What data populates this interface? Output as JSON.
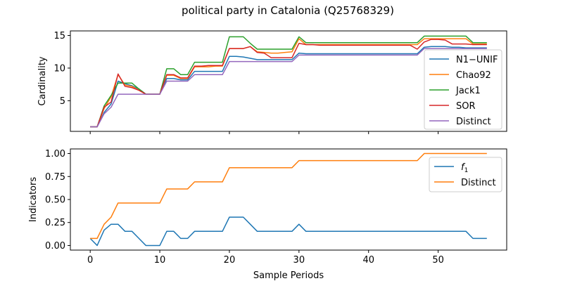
{
  "figure": {
    "title": "political party in Catalonia (Q25768329)"
  },
  "chart_data": [
    {
      "type": "line",
      "title": "political party in Catalonia (Q25768329)",
      "xlabel": "",
      "ylabel": "Cardinality",
      "xlim": [
        -2.85,
        59.85
      ],
      "ylim": [
        0.3,
        15.7
      ],
      "xticks": [
        0,
        10,
        20,
        30,
        40,
        50
      ],
      "xtick_labels": [
        "",
        "",
        "",
        "",
        "",
        ""
      ],
      "yticks": [
        5,
        10,
        15
      ],
      "ytick_labels": [
        "5",
        "10",
        "15"
      ],
      "grid": false,
      "legend_placement": "center-right",
      "x": [
        0,
        1,
        2,
        3,
        4,
        5,
        6,
        7,
        8,
        9,
        10,
        11,
        12,
        13,
        14,
        15,
        16,
        17,
        18,
        19,
        20,
        21,
        22,
        23,
        24,
        25,
        26,
        27,
        28,
        29,
        30,
        31,
        32,
        33,
        34,
        35,
        36,
        37,
        38,
        39,
        40,
        41,
        42,
        43,
        44,
        45,
        46,
        47,
        48,
        49,
        50,
        51,
        52,
        53,
        54,
        55,
        56,
        57
      ],
      "series": [
        {
          "name": "N1−UNIF",
          "color": "#1f77b4",
          "values": [
            1,
            1,
            3.2,
            4.5,
            8,
            7.6,
            7.3,
            6.8,
            6,
            6,
            6,
            8.4,
            8.4,
            8.2,
            8.2,
            9.5,
            9.5,
            9.5,
            9.5,
            9.5,
            11.8,
            11.8,
            11.7,
            11.5,
            11.3,
            11.3,
            11.3,
            11.3,
            11.3,
            11.3,
            12.3,
            12.2,
            12.2,
            12.2,
            12.2,
            12.2,
            12.2,
            12.2,
            12.2,
            12.2,
            12.2,
            12.2,
            12.2,
            12.2,
            12.2,
            12.2,
            12.2,
            12.2,
            13.2,
            13.3,
            13.3,
            13.3,
            13.2,
            13.2,
            13.1,
            13.1,
            13.1,
            13.1
          ]
        },
        {
          "name": "Chao92",
          "color": "#ff7f0e",
          "values": [
            1,
            1,
            3.8,
            5.6,
            9,
            7.4,
            7.2,
            6.6,
            6,
            6,
            6,
            8.9,
            8.9,
            8.4,
            8.4,
            10.2,
            10.2,
            10.2,
            10.3,
            10.3,
            13,
            13,
            13,
            13.3,
            12.5,
            12.4,
            12.3,
            12.3,
            12.4,
            12.5,
            14.5,
            13.6,
            13.6,
            13.6,
            13.6,
            13.6,
            13.6,
            13.6,
            13.6,
            13.6,
            13.6,
            13.6,
            13.6,
            13.6,
            13.6,
            13.6,
            13.6,
            13.6,
            14.5,
            14.5,
            14.5,
            14.5,
            14.5,
            14.5,
            14.5,
            13.7,
            13.7,
            13.7
          ]
        },
        {
          "name": "Jack1",
          "color": "#2ca02c",
          "values": [
            1,
            1,
            4.2,
            5.8,
            7.7,
            7.7,
            7.7,
            6.8,
            6,
            6,
            6,
            9.9,
            9.9,
            9,
            9,
            10.9,
            10.9,
            10.9,
            10.9,
            10.9,
            14.8,
            14.8,
            14.8,
            13.8,
            12.9,
            12.9,
            12.9,
            12.9,
            12.9,
            12.9,
            14.8,
            13.9,
            13.9,
            13.9,
            13.9,
            13.9,
            13.9,
            13.9,
            13.9,
            13.9,
            13.9,
            13.9,
            13.9,
            13.9,
            13.9,
            13.9,
            13.9,
            13.9,
            14.9,
            14.9,
            14.9,
            14.9,
            14.9,
            14.9,
            14.9,
            13.9,
            13.9,
            13.9
          ]
        },
        {
          "name": "SOR",
          "color": "#d62728",
          "values": [
            1,
            1,
            4,
            4.8,
            9.1,
            7.2,
            7,
            6.6,
            6,
            6,
            6,
            9,
            9,
            8.5,
            8.5,
            10.3,
            10.3,
            10.4,
            10.4,
            10.4,
            13,
            13,
            13,
            13.3,
            12.4,
            12.3,
            11.6,
            11.6,
            11.6,
            11.6,
            13.8,
            13.6,
            13.6,
            13.5,
            13.5,
            13.5,
            13.5,
            13.5,
            13.5,
            13.5,
            13.5,
            13.5,
            13.5,
            13.5,
            13.5,
            13.5,
            13.5,
            12.9,
            14,
            14.4,
            14.4,
            14.3,
            13.7,
            13.7,
            13.7,
            13.6,
            13.6,
            13.6
          ]
        },
        {
          "name": "Distinct",
          "color": "#9467bd",
          "values": [
            1,
            1,
            3,
            4,
            6,
            6,
            6,
            6,
            6,
            6,
            6,
            8,
            8,
            8,
            8,
            9,
            9,
            9,
            9,
            9,
            11,
            11,
            11,
            11,
            11,
            11,
            11,
            11,
            11,
            11,
            12,
            12,
            12,
            12,
            12,
            12,
            12,
            12,
            12,
            12,
            12,
            12,
            12,
            12,
            12,
            12,
            12,
            12,
            13,
            13,
            13,
            13,
            13,
            13,
            13,
            13,
            13,
            13
          ]
        }
      ]
    },
    {
      "type": "line",
      "title": "",
      "xlabel": "Sample Periods",
      "ylabel": "Indicators",
      "xlim": [
        -2.85,
        59.85
      ],
      "ylim": [
        -0.05,
        1.05
      ],
      "xticks": [
        0,
        10,
        20,
        30,
        40,
        50
      ],
      "xtick_labels": [
        "0",
        "10",
        "20",
        "30",
        "40",
        "50"
      ],
      "yticks": [
        0,
        0.25,
        0.5,
        0.75,
        1
      ],
      "ytick_labels": [
        "0.00",
        "0.25",
        "0.50",
        "0.75",
        "1.00"
      ],
      "grid": false,
      "legend_placement": "top-right",
      "x": [
        0,
        1,
        2,
        3,
        4,
        5,
        6,
        7,
        8,
        9,
        10,
        11,
        12,
        13,
        14,
        15,
        16,
        17,
        18,
        19,
        20,
        21,
        22,
        23,
        24,
        25,
        26,
        27,
        28,
        29,
        30,
        31,
        32,
        33,
        34,
        35,
        36,
        37,
        38,
        39,
        40,
        41,
        42,
        43,
        44,
        45,
        46,
        47,
        48,
        49,
        50,
        51,
        52,
        53,
        54,
        55,
        56,
        57
      ],
      "series": [
        {
          "name": "f1",
          "color": "#1f77b4",
          "values": [
            0.077,
            0,
            0.167,
            0.231,
            0.231,
            0.154,
            0.154,
            0.077,
            0,
            0,
            0,
            0.154,
            0.154,
            0.077,
            0.077,
            0.154,
            0.154,
            0.154,
            0.154,
            0.154,
            0.308,
            0.308,
            0.308,
            0.231,
            0.154,
            0.154,
            0.154,
            0.154,
            0.154,
            0.154,
            0.231,
            0.154,
            0.154,
            0.154,
            0.154,
            0.154,
            0.154,
            0.154,
            0.154,
            0.154,
            0.154,
            0.154,
            0.154,
            0.154,
            0.154,
            0.154,
            0.154,
            0.154,
            0.154,
            0.154,
            0.154,
            0.154,
            0.154,
            0.154,
            0.154,
            0.077,
            0.077,
            0.077
          ]
        },
        {
          "name": "Distinct",
          "color": "#ff7f0e",
          "values": [
            0.077,
            0.077,
            0.231,
            0.308,
            0.462,
            0.462,
            0.462,
            0.462,
            0.462,
            0.462,
            0.462,
            0.615,
            0.615,
            0.615,
            0.615,
            0.692,
            0.692,
            0.692,
            0.692,
            0.692,
            0.846,
            0.846,
            0.846,
            0.846,
            0.846,
            0.846,
            0.846,
            0.846,
            0.846,
            0.846,
            0.923,
            0.923,
            0.923,
            0.923,
            0.923,
            0.923,
            0.923,
            0.923,
            0.923,
            0.923,
            0.923,
            0.923,
            0.923,
            0.923,
            0.923,
            0.923,
            0.923,
            0.923,
            1,
            1,
            1,
            1,
            1,
            1,
            1,
            1,
            1,
            1
          ]
        }
      ]
    }
  ]
}
